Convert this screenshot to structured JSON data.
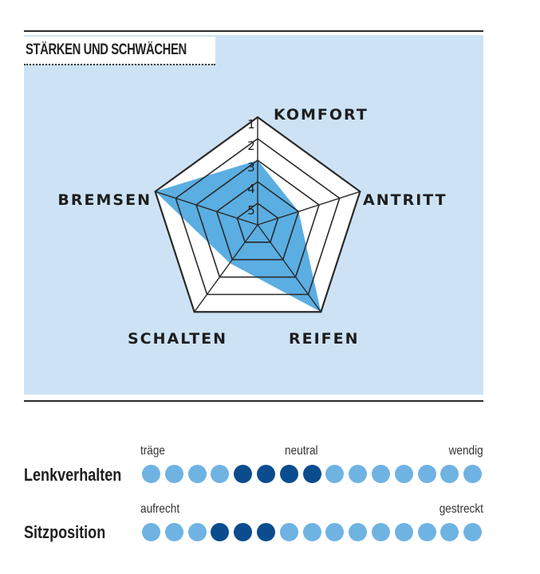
{
  "panel": {
    "title": "STÄRKEN UND SCHWÄCHEN"
  },
  "chart_data": {
    "type": "radar",
    "title": "STÄRKEN UND SCHWÄCHEN",
    "scale_labels": [
      "1",
      "2",
      "3",
      "4",
      "5"
    ],
    "scale_note": "1 = outer ring (best), 5 = centre ring",
    "axes": [
      "KOMFORT",
      "ANTRITT",
      "REIFEN",
      "SCHALTEN",
      "BREMSEN"
    ],
    "values": [
      3,
      4,
      1,
      3.8,
      1
    ]
  },
  "ratings": [
    {
      "name": "Lenkverhalten",
      "scale_words": [
        "träge",
        "neutral",
        "wendig"
      ],
      "total_dots": 15,
      "filled_range": [
        5,
        8
      ]
    },
    {
      "name": "Sitzposition",
      "scale_words": [
        "aufrecht",
        "gestreckt"
      ],
      "total_dots": 15,
      "filled_range": [
        4,
        6
      ]
    }
  ],
  "colors": {
    "panel_bg": "#cde3f5",
    "radar_fill": "#5aaee2",
    "dot_light": "#6fb3e3",
    "dot_dark": "#0b4c8f"
  }
}
